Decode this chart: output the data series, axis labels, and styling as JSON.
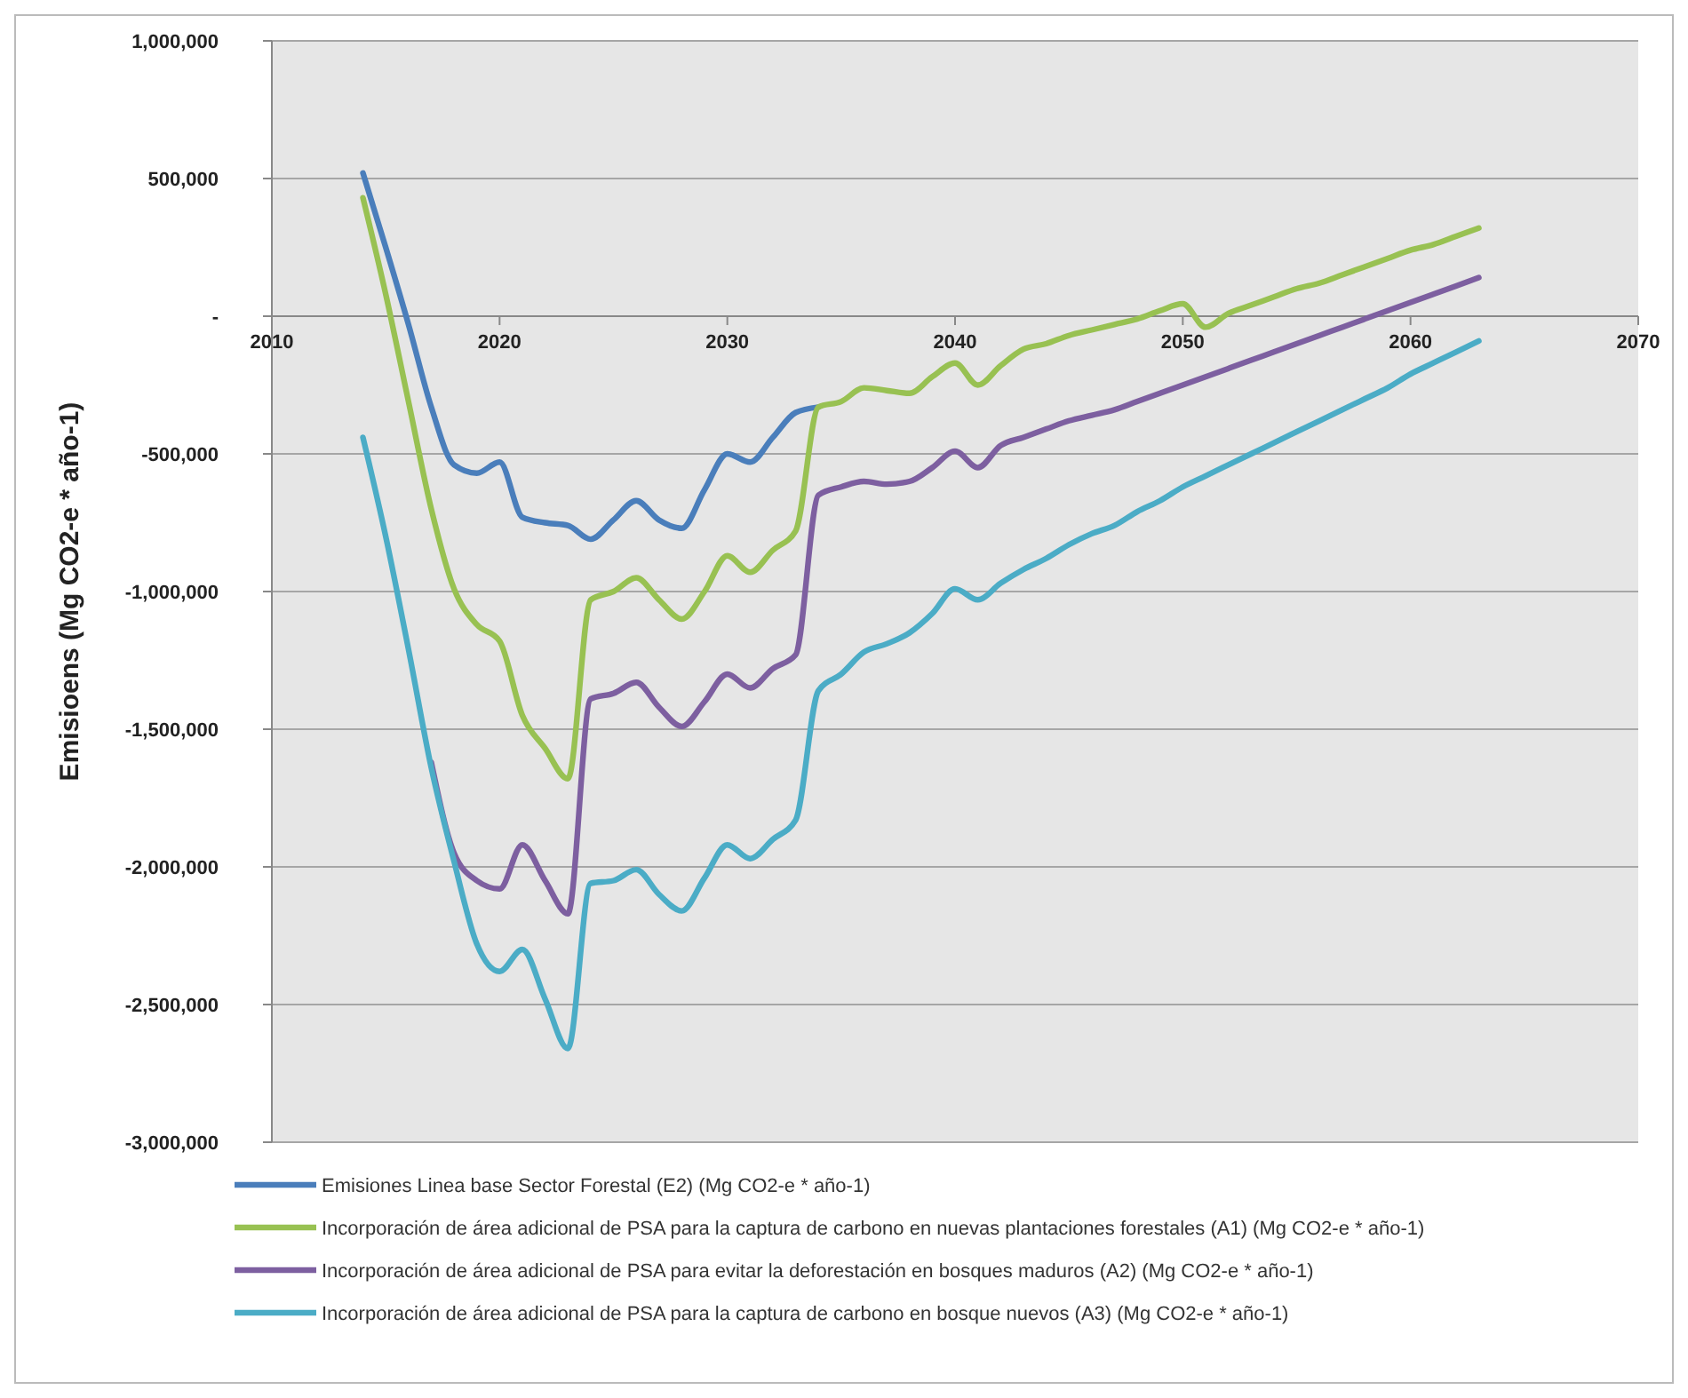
{
  "chart_data": {
    "type": "line",
    "ylabel": "Emisioens (Mg CO2-e * año-1)",
    "xlim": [
      2010,
      2070
    ],
    "xticks": [
      2010,
      2020,
      2030,
      2040,
      2050,
      2060,
      2070
    ],
    "ylim": [
      -3000000,
      1000000
    ],
    "yticks": [
      {
        "value": -3000000,
        "label": "-3,000,000"
      },
      {
        "value": -2500000,
        "label": "-2,500,000"
      },
      {
        "value": -2000000,
        "label": "-2,000,000"
      },
      {
        "value": -1500000,
        "label": "-1,500,000"
      },
      {
        "value": -1000000,
        "label": "-1,000,000"
      },
      {
        "value": -500000,
        "label": "-500,000"
      },
      {
        "value": 0,
        "label": "-"
      },
      {
        "value": 500000,
        "label": "500,000"
      },
      {
        "value": 1000000,
        "label": "1,000,000"
      }
    ],
    "grid": "y",
    "legend": "bottom",
    "marker": "none",
    "line_style": "solid",
    "series": [
      {
        "name": "Emisiones Linea base Sector Forestal (E2) (Mg CO2-e * año-1)",
        "color": "#4a7ebb",
        "x": [
          2014,
          2015,
          2016,
          2017,
          2018,
          2019,
          2020,
          2021,
          2022,
          2023,
          2024,
          2025,
          2026,
          2027,
          2028,
          2029,
          2030,
          2031,
          2032,
          2033,
          2034
        ],
        "values": [
          520000,
          250000,
          -30000,
          -330000,
          -540000,
          -570000,
          -530000,
          -730000,
          -750000,
          -760000,
          -810000,
          -740000,
          -670000,
          -740000,
          -770000,
          -630000,
          -500000,
          -530000,
          -440000,
          -350000,
          -330000
        ]
      },
      {
        "name": "Incorporación de área adicional de PSA para la captura de carbono en nuevas plantaciones forestales (A1) (Mg CO2-e * año-1)",
        "color": "#98c152",
        "x": [
          2014,
          2015,
          2016,
          2017,
          2018,
          2019,
          2020,
          2021,
          2022,
          2023,
          2024,
          2025,
          2026,
          2027,
          2028,
          2029,
          2030,
          2031,
          2032,
          2033,
          2034,
          2035,
          2036,
          2037,
          2038,
          2039,
          2040,
          2041,
          2042,
          2043,
          2044,
          2045,
          2046,
          2047,
          2048,
          2049,
          2050,
          2051,
          2052,
          2053,
          2054,
          2055,
          2056,
          2057,
          2058,
          2059,
          2060,
          2061,
          2062,
          2063
        ],
        "values": [
          430000,
          80000,
          -310000,
          -700000,
          -990000,
          -1120000,
          -1180000,
          -1450000,
          -1570000,
          -1680000,
          -1030000,
          -1000000,
          -950000,
          -1030000,
          -1100000,
          -1000000,
          -870000,
          -930000,
          -850000,
          -780000,
          -330000,
          -310000,
          -260000,
          -270000,
          -280000,
          -220000,
          -170000,
          -250000,
          -180000,
          -120000,
          -100000,
          -70000,
          -50000,
          -30000,
          -10000,
          20000,
          45000,
          -40000,
          10000,
          40000,
          70000,
          100000,
          120000,
          150000,
          180000,
          210000,
          240000,
          260000,
          290000,
          320000
        ]
      },
      {
        "name": "Incorporación de área adicional de PSA para evitar la deforestación en bosques maduros (A2) (Mg CO2-e * año-1)",
        "color": "#7d5fa0",
        "x": [
          2017,
          2018,
          2019,
          2020,
          2021,
          2022,
          2023,
          2024,
          2025,
          2026,
          2027,
          2028,
          2029,
          2030,
          2031,
          2032,
          2033,
          2034,
          2035,
          2036,
          2037,
          2038,
          2039,
          2040,
          2041,
          2042,
          2043,
          2044,
          2045,
          2046,
          2047,
          2048,
          2049,
          2050,
          2051,
          2052,
          2053,
          2054,
          2055,
          2056,
          2057,
          2058,
          2059,
          2060,
          2061,
          2062,
          2063
        ],
        "values": [
          -1620000,
          -1950000,
          -2050000,
          -2080000,
          -1920000,
          -2050000,
          -2170000,
          -1390000,
          -1370000,
          -1330000,
          -1420000,
          -1490000,
          -1400000,
          -1300000,
          -1350000,
          -1280000,
          -1230000,
          -650000,
          -620000,
          -600000,
          -610000,
          -600000,
          -550000,
          -490000,
          -550000,
          -470000,
          -440000,
          -410000,
          -380000,
          -360000,
          -340000,
          -310000,
          -280000,
          -250000,
          -220000,
          -190000,
          -160000,
          -130000,
          -100000,
          -70000,
          -40000,
          -10000,
          20000,
          50000,
          80000,
          110000,
          140000
        ]
      },
      {
        "name": "Incorporación de área adicional de PSA para la captura de carbono en bosque nuevos (A3) (Mg CO2-e * año-1)",
        "color": "#4bacc6",
        "x": [
          2014,
          2015,
          2016,
          2017,
          2018,
          2019,
          2020,
          2021,
          2022,
          2023,
          2024,
          2025,
          2026,
          2027,
          2028,
          2029,
          2030,
          2031,
          2032,
          2033,
          2034,
          2035,
          2036,
          2037,
          2038,
          2039,
          2040,
          2041,
          2042,
          2043,
          2044,
          2045,
          2046,
          2047,
          2048,
          2049,
          2050,
          2051,
          2052,
          2053,
          2054,
          2055,
          2056,
          2057,
          2058,
          2059,
          2060,
          2061,
          2062,
          2063
        ],
        "values": [
          -440000,
          -800000,
          -1210000,
          -1640000,
          -1980000,
          -2280000,
          -2380000,
          -2300000,
          -2480000,
          -2660000,
          -2060000,
          -2050000,
          -2010000,
          -2100000,
          -2160000,
          -2040000,
          -1920000,
          -1970000,
          -1900000,
          -1830000,
          -1360000,
          -1300000,
          -1220000,
          -1190000,
          -1150000,
          -1080000,
          -990000,
          -1030000,
          -970000,
          -920000,
          -880000,
          -830000,
          -790000,
          -760000,
          -710000,
          -670000,
          -620000,
          -580000,
          -540000,
          -500000,
          -460000,
          -420000,
          -380000,
          -340000,
          -300000,
          -260000,
          -210000,
          -170000,
          -130000,
          -90000
        ]
      }
    ]
  }
}
